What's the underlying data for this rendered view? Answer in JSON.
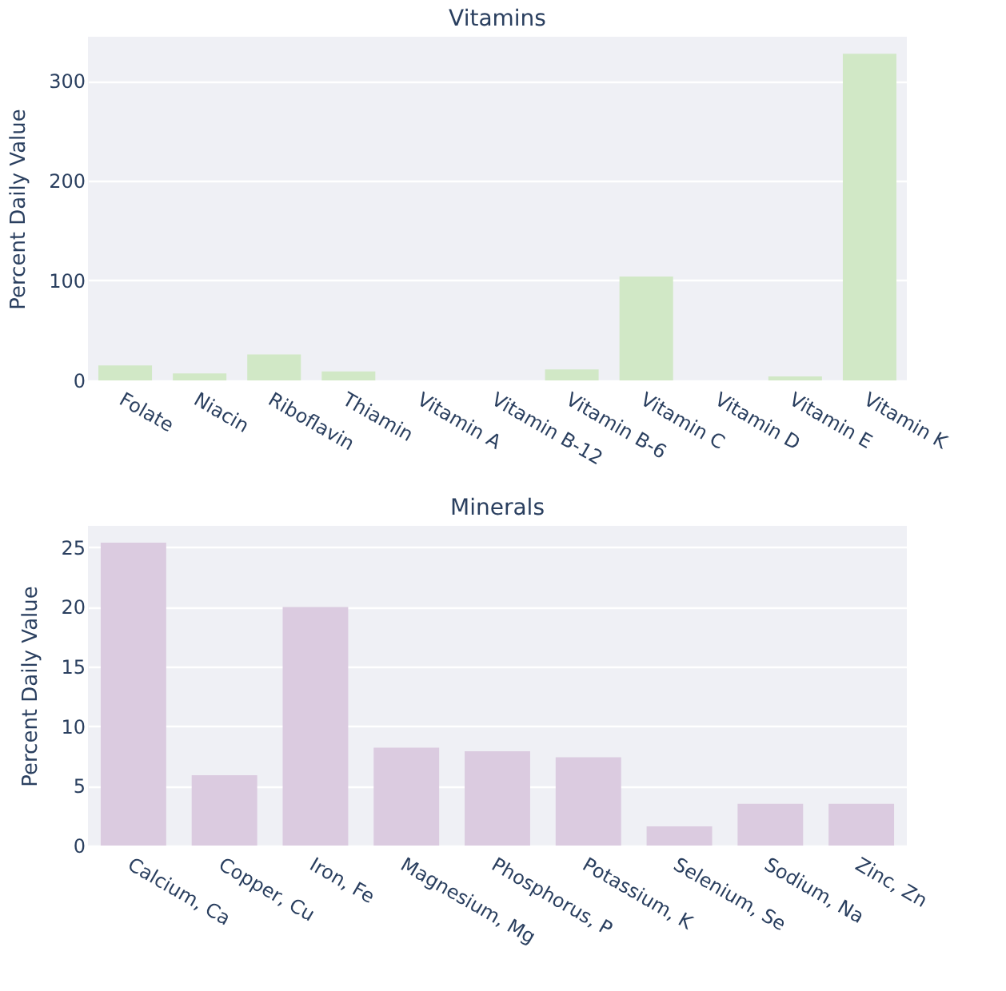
{
  "chart_data": [
    {
      "type": "bar",
      "title": "Vitamins",
      "ylabel": "Percent Daily Value",
      "categories": [
        "Folate",
        "Niacin",
        "Riboflavin",
        "Thiamin",
        "Vitamin A",
        "Vitamin B-12",
        "Vitamin B-6",
        "Vitamin C",
        "Vitamin D",
        "Vitamin E",
        "Vitamin K"
      ],
      "values": [
        15,
        7,
        26,
        9,
        0,
        0,
        11,
        104,
        0,
        4,
        327
      ],
      "color": "#d1e8c6",
      "ylim": [
        0,
        344
      ],
      "yticks": [
        0,
        100,
        200,
        300
      ],
      "grid": "y"
    },
    {
      "type": "bar",
      "title": "Minerals",
      "ylabel": "Percent Daily Value",
      "categories": [
        "Calcium, Ca",
        "Copper, Cu",
        "Iron, Fe",
        "Magnesium, Mg",
        "Phosphorus, P",
        "Potassium, K",
        "Selenium, Se",
        "Sodium, Na",
        "Zinc, Zn"
      ],
      "values": [
        25.4,
        5.9,
        20.0,
        8.2,
        7.9,
        7.4,
        1.6,
        3.5,
        3.5
      ],
      "color": "#dbcbe0",
      "ylim": [
        0,
        26.8
      ],
      "yticks": [
        0,
        5,
        10,
        15,
        20,
        25
      ],
      "grid": "y"
    }
  ]
}
